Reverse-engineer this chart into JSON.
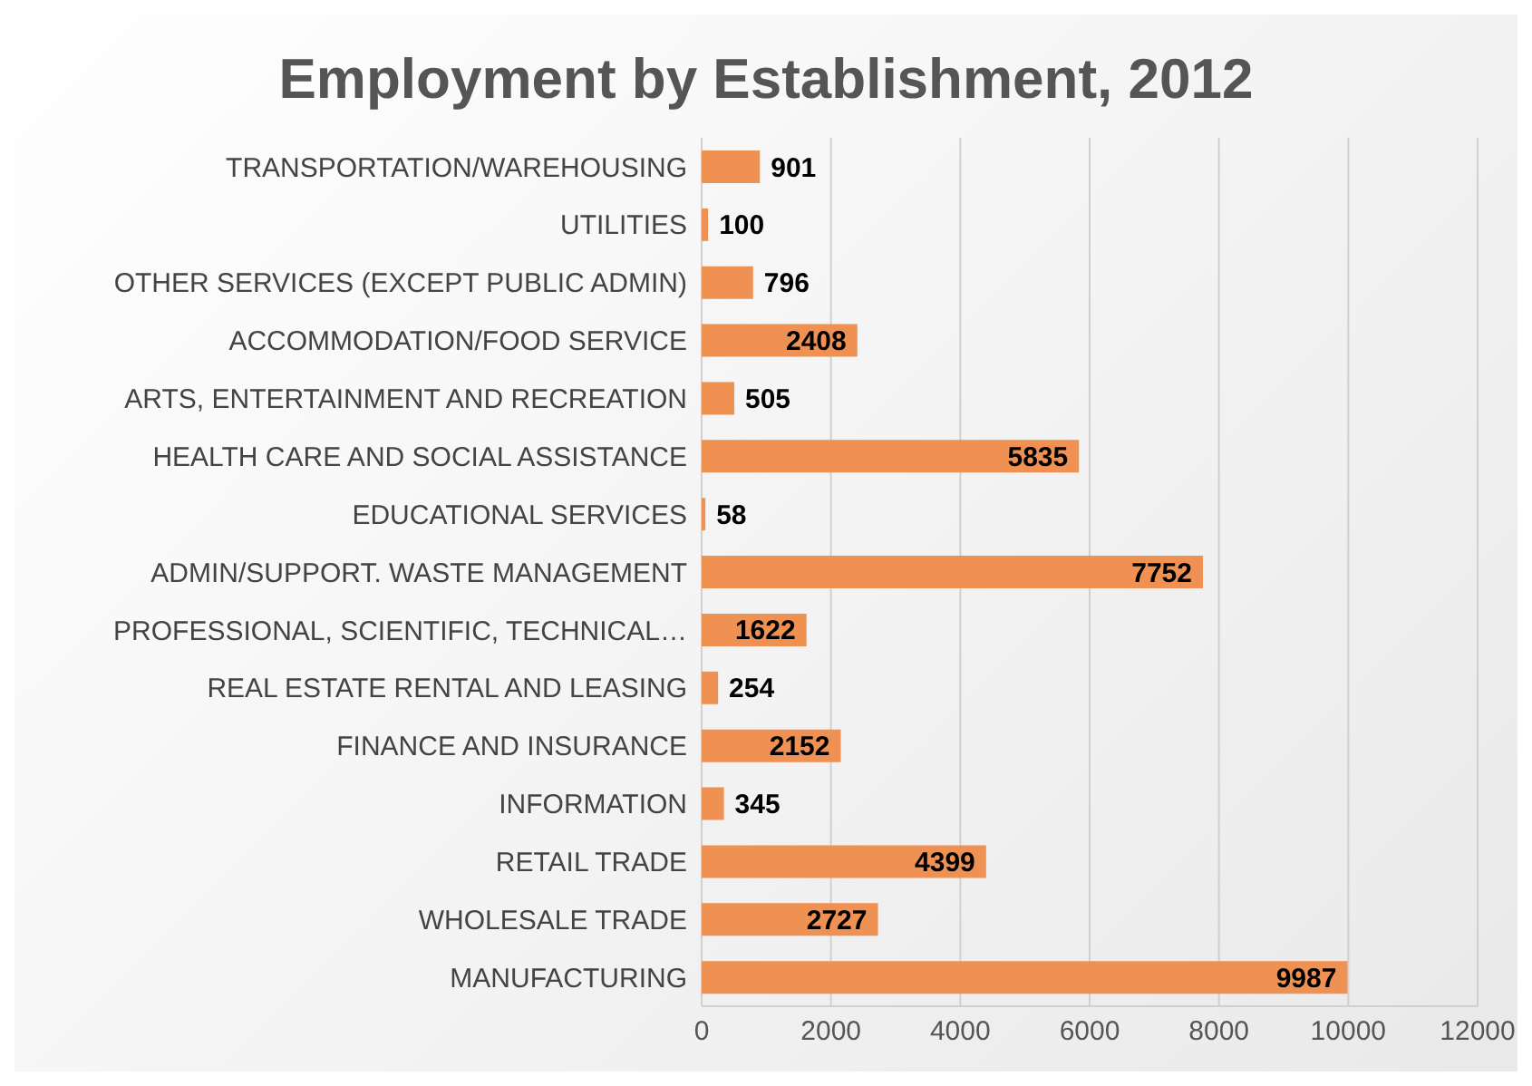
{
  "chart_data": {
    "type": "bar",
    "orientation": "horizontal",
    "title": "Employment by Establishment, 2012",
    "categories": [
      "TRANSPORTATION/WAREHOUSING",
      "UTILITIES",
      "OTHER SERVICES (EXCEPT PUBLIC ADMIN)",
      "ACCOMMODATION/FOOD SERVICE",
      "ARTS, ENTERTAINMENT AND RECREATION",
      "HEALTH CARE AND SOCIAL ASSISTANCE",
      "EDUCATIONAL SERVICES",
      "ADMIN/SUPPORT. WASTE MANAGEMENT",
      "PROFESSIONAL, SCIENTIFIC, TECHNICAL…",
      "REAL ESTATE RENTAL AND LEASING",
      "FINANCE AND INSURANCE",
      "INFORMATION",
      "RETAIL TRADE",
      "WHOLESALE TRADE",
      "MANUFACTURING"
    ],
    "values": [
      901,
      100,
      796,
      2408,
      505,
      5835,
      58,
      7752,
      1622,
      254,
      2152,
      345,
      4399,
      2727,
      9987
    ],
    "color": "#ef9152",
    "xlim": [
      0,
      12000
    ],
    "xticks": [
      0,
      2000,
      4000,
      6000,
      8000,
      10000,
      12000
    ],
    "grid": "x",
    "data_labels": true
  }
}
